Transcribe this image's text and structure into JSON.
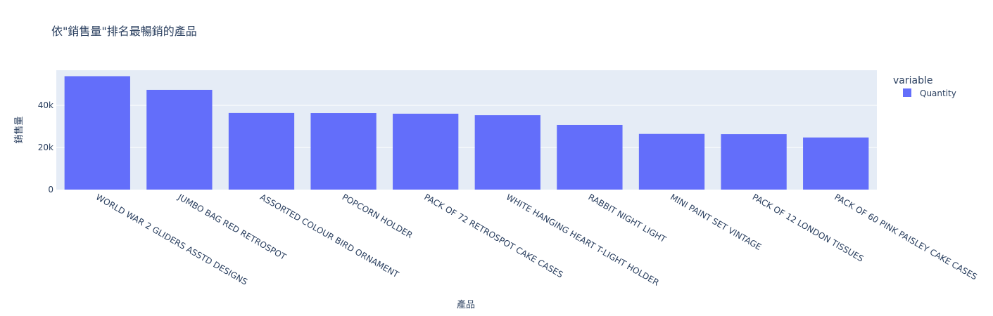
{
  "chart_data": {
    "type": "bar",
    "title": "依\"銷售量\"排名最暢銷的產品",
    "xlabel": "產品",
    "ylabel": "銷售量",
    "categories": [
      "WORLD WAR 2 GLIDERS ASSTD DESIGNS",
      "JUMBO BAG RED RETROSPOT",
      "ASSORTED COLOUR BIRD ORNAMENT",
      "POPCORN HOLDER",
      "PACK OF 72 RETROSPOT CAKE CASES",
      "WHITE HANGING HEART T-LIGHT HOLDER",
      "RABBIT NIGHT LIGHT",
      "MINI PAINT SET VINTAGE",
      "PACK OF 12 LONDON TISSUES",
      "PACK OF 60 PINK PAISLEY CAKE CASES"
    ],
    "series": [
      {
        "name": "Quantity",
        "color": "#636efa",
        "values": [
          53847,
          47363,
          36381,
          36334,
          36039,
          35317,
          30680,
          26437,
          26315,
          24753
        ]
      }
    ],
    "ylim": [
      0,
      56682
    ],
    "yticks": [
      {
        "value": 0,
        "label": "0"
      },
      {
        "value": 20000,
        "label": "20k"
      },
      {
        "value": 40000,
        "label": "40k"
      }
    ],
    "legend": {
      "title": "variable",
      "placement": "right"
    },
    "grid": true,
    "plot_bg": "#e5ecf6"
  }
}
